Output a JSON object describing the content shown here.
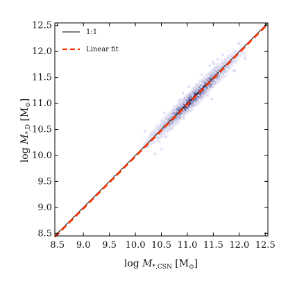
{
  "chart_data": {
    "type": "scatter",
    "xlabel": "log M*,CSN [M⊙]",
    "ylabel": "log M*,D [M⊙]",
    "xlim": [
      8.45,
      12.55
    ],
    "ylim": [
      8.45,
      12.55
    ],
    "x_ticks": [
      "8.5",
      "9.0",
      "9.5",
      "10.0",
      "10.5",
      "11.0",
      "11.5",
      "12.0",
      "12.5"
    ],
    "y_ticks": [
      "8.5",
      "9.0",
      "9.5",
      "10.0",
      "10.5",
      "11.0",
      "11.5",
      "12.0",
      "12.5"
    ],
    "x_tick_values": [
      8.5,
      9.0,
      9.5,
      10.0,
      10.5,
      11.0,
      11.5,
      12.0,
      12.5
    ],
    "y_tick_values": [
      8.5,
      9.0,
      9.5,
      10.0,
      10.5,
      11.0,
      11.5,
      12.0,
      12.5
    ],
    "legend_position": "top-left",
    "grid": false,
    "series": [
      {
        "name": "1:1",
        "style": "solid",
        "color": "#000000",
        "x": [
          8.45,
          12.55
        ],
        "y": [
          8.45,
          12.55
        ]
      },
      {
        "name": "Linear fit",
        "style": "dashed",
        "color": "#ff3300",
        "x": [
          8.45,
          12.55
        ],
        "y": [
          8.43,
          12.53
        ]
      }
    ],
    "density": {
      "description_free": true,
      "color_low": "#dcdcf8",
      "color_high": "#141466",
      "center": [
        11.1,
        11.1
      ],
      "spread_along": 0.42,
      "spread_across": 0.09,
      "range": [
        10.1,
        12.1
      ]
    }
  }
}
